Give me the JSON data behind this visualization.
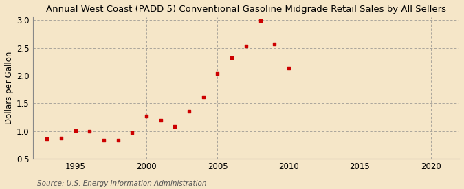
{
  "title": "Annual West Coast (PADD 5) Conventional Gasoline Midgrade Retail Sales by All Sellers",
  "ylabel": "Dollars per Gallon",
  "source": "Source: U.S. Energy Information Administration",
  "years": [
    1993,
    1994,
    1995,
    1996,
    1997,
    1998,
    1999,
    2000,
    2001,
    2002,
    2003,
    2004,
    2005,
    2006,
    2007,
    2008,
    2009,
    2010
  ],
  "values": [
    0.862,
    0.872,
    1.002,
    1.001,
    0.832,
    0.832,
    0.972,
    1.272,
    1.198,
    1.083,
    1.352,
    1.621,
    2.041,
    2.321,
    2.531,
    2.99,
    2.57,
    2.14
  ],
  "marker_color": "#cc0000",
  "bg_color": "#f5e6c8",
  "plot_bg_color": "#f5e6c8",
  "grid_color": "#888888",
  "spine_color": "#888888",
  "xlim": [
    1992,
    2022
  ],
  "ylim": [
    0.5,
    3.05
  ],
  "xticks": [
    1995,
    2000,
    2005,
    2010,
    2015,
    2020
  ],
  "yticks": [
    0.5,
    1.0,
    1.5,
    2.0,
    2.5,
    3.0
  ],
  "title_fontsize": 9.5,
  "label_fontsize": 8.5,
  "tick_fontsize": 8.5,
  "source_fontsize": 7.5
}
